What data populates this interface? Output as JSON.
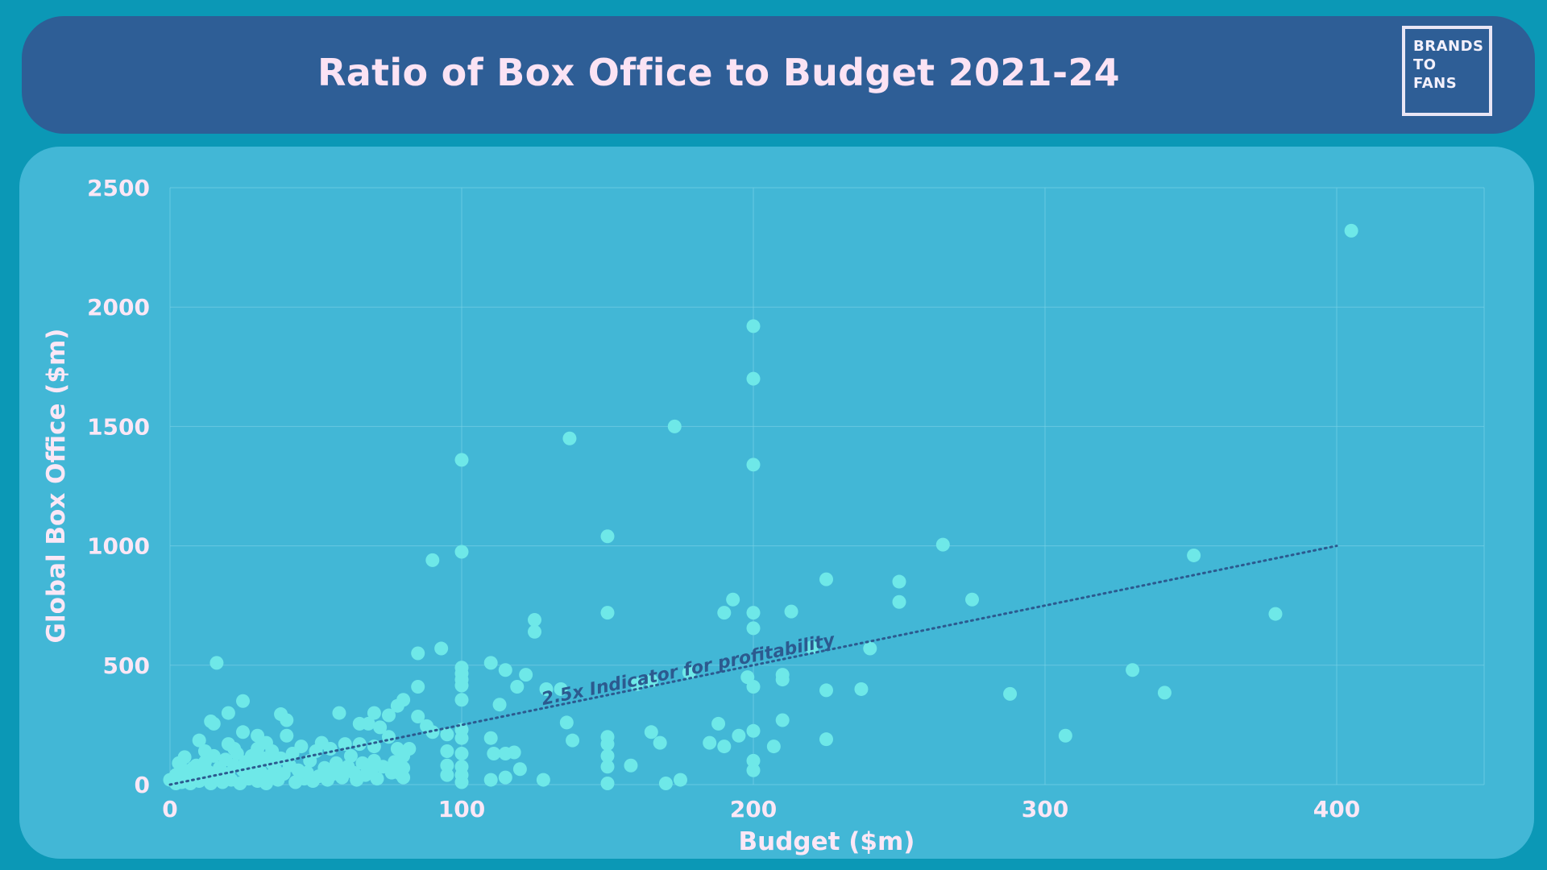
{
  "header": {
    "title": "Ratio of Box Office to Budget 2021-24",
    "logo_lines": [
      "BRANDS",
      "TO",
      "FANS"
    ]
  },
  "colors": {
    "background": "#0b98b6",
    "header": "#2e5e96",
    "panel": "#42b7d6",
    "points": "#6ee8e8",
    "text": "#fbe7f6",
    "trendline": "#2c5a8f"
  },
  "chart_data": {
    "type": "scatter",
    "title": "Ratio of Box Office to Budget 2021-24",
    "xlabel": "Budget ($m)",
    "ylabel": "Global Box Office ($m)",
    "xlim": [
      0,
      450
    ],
    "ylim": [
      0,
      2500
    ],
    "x_ticks": [
      "0",
      "100",
      "200",
      "300",
      "400"
    ],
    "y_ticks": [
      "0",
      "500",
      "1000",
      "1500",
      "2000",
      "2500"
    ],
    "grid": true,
    "legend": "none",
    "trendline": {
      "label": "2.5x Indicator for profitability",
      "from": [
        0,
        0
      ],
      "to": [
        400,
        1000
      ],
      "style": "dotted"
    },
    "points": [
      [
        405,
        2320
      ],
      [
        200,
        1920
      ],
      [
        200,
        1700
      ],
      [
        200,
        1340
      ],
      [
        100,
        1360
      ],
      [
        137,
        1450
      ],
      [
        173,
        1500
      ],
      [
        150,
        1040
      ],
      [
        100,
        975
      ],
      [
        90,
        940
      ],
      [
        265,
        1005
      ],
      [
        351,
        960
      ],
      [
        225,
        860
      ],
      [
        250,
        850
      ],
      [
        250,
        765
      ],
      [
        275,
        775
      ],
      [
        213,
        725
      ],
      [
        193,
        775
      ],
      [
        190,
        720
      ],
      [
        200,
        720
      ],
      [
        200,
        655
      ],
      [
        150,
        720
      ],
      [
        379,
        715
      ],
      [
        125,
        690
      ],
      [
        125,
        640
      ],
      [
        93,
        570
      ],
      [
        85,
        550
      ],
      [
        16,
        510
      ],
      [
        110,
        510
      ],
      [
        100,
        490
      ],
      [
        100,
        465
      ],
      [
        100,
        440
      ],
      [
        100,
        415
      ],
      [
        100,
        355
      ],
      [
        115,
        480
      ],
      [
        122,
        460
      ],
      [
        220,
        575
      ],
      [
        240,
        570
      ],
      [
        178,
        470
      ],
      [
        198,
        450
      ],
      [
        210,
        440
      ],
      [
        210,
        460
      ],
      [
        200,
        410
      ],
      [
        225,
        395
      ],
      [
        237,
        400
      ],
      [
        330,
        480
      ],
      [
        341,
        385
      ],
      [
        288,
        380
      ],
      [
        307,
        205
      ],
      [
        165,
        435
      ],
      [
        160,
        420
      ],
      [
        129,
        400
      ],
      [
        134,
        400
      ],
      [
        119,
        410
      ],
      [
        85,
        410
      ],
      [
        113,
        335
      ],
      [
        80,
        355
      ],
      [
        78,
        330
      ],
      [
        70,
        300
      ],
      [
        58,
        300
      ],
      [
        38,
        295
      ],
      [
        25,
        350
      ],
      [
        20,
        300
      ],
      [
        40,
        270
      ],
      [
        14,
        265
      ],
      [
        15,
        255
      ],
      [
        25,
        220
      ],
      [
        40,
        205
      ],
      [
        30,
        205
      ],
      [
        10,
        185
      ],
      [
        5,
        115
      ],
      [
        3,
        90
      ],
      [
        8,
        70
      ],
      [
        12,
        140
      ],
      [
        20,
        170
      ],
      [
        22,
        150
      ],
      [
        28,
        120
      ],
      [
        30,
        150
      ],
      [
        33,
        175
      ],
      [
        35,
        90
      ],
      [
        38,
        110
      ],
      [
        42,
        130
      ],
      [
        45,
        160
      ],
      [
        48,
        100
      ],
      [
        50,
        140
      ],
      [
        52,
        175
      ],
      [
        55,
        150
      ],
      [
        57,
        90
      ],
      [
        60,
        170
      ],
      [
        62,
        120
      ],
      [
        65,
        255
      ],
      [
        65,
        170
      ],
      [
        68,
        255
      ],
      [
        70,
        160
      ],
      [
        70,
        100
      ],
      [
        72,
        240
      ],
      [
        75,
        290
      ],
      [
        75,
        200
      ],
      [
        78,
        150
      ],
      [
        80,
        120
      ],
      [
        80,
        70
      ],
      [
        80,
        30
      ],
      [
        82,
        150
      ],
      [
        85,
        285
      ],
      [
        88,
        245
      ],
      [
        90,
        220
      ],
      [
        95,
        210
      ],
      [
        95,
        140
      ],
      [
        95,
        80
      ],
      [
        95,
        40
      ],
      [
        100,
        230
      ],
      [
        100,
        195
      ],
      [
        100,
        130
      ],
      [
        100,
        75
      ],
      [
        100,
        40
      ],
      [
        100,
        10
      ],
      [
        110,
        195
      ],
      [
        111,
        130
      ],
      [
        115,
        130
      ],
      [
        118,
        135
      ],
      [
        120,
        65
      ],
      [
        110,
        20
      ],
      [
        115,
        30
      ],
      [
        128,
        20
      ],
      [
        136,
        260
      ],
      [
        138,
        185
      ],
      [
        150,
        200
      ],
      [
        150,
        170
      ],
      [
        150,
        120
      ],
      [
        150,
        75
      ],
      [
        150,
        5
      ],
      [
        158,
        80
      ],
      [
        165,
        220
      ],
      [
        168,
        175
      ],
      [
        170,
        5
      ],
      [
        175,
        20
      ],
      [
        185,
        175
      ],
      [
        188,
        255
      ],
      [
        190,
        160
      ],
      [
        195,
        205
      ],
      [
        200,
        225
      ],
      [
        200,
        100
      ],
      [
        200,
        60
      ],
      [
        207,
        160
      ],
      [
        210,
        270
      ],
      [
        225,
        190
      ],
      [
        0,
        20
      ],
      [
        2,
        5
      ],
      [
        2,
        40
      ],
      [
        4,
        10
      ],
      [
        5,
        60
      ],
      [
        6,
        25
      ],
      [
        7,
        5
      ],
      [
        8,
        45
      ],
      [
        9,
        80
      ],
      [
        10,
        15
      ],
      [
        11,
        35
      ],
      [
        12,
        95
      ],
      [
        13,
        55
      ],
      [
        14,
        5
      ],
      [
        15,
        120
      ],
      [
        16,
        30
      ],
      [
        17,
        70
      ],
      [
        18,
        10
      ],
      [
        19,
        105
      ],
      [
        20,
        45
      ],
      [
        21,
        20
      ],
      [
        22,
        80
      ],
      [
        23,
        130
      ],
      [
        24,
        5
      ],
      [
        25,
        60
      ],
      [
        26,
        95
      ],
      [
        27,
        25
      ],
      [
        28,
        40
      ],
      [
        29,
        75
      ],
      [
        30,
        15
      ],
      [
        31,
        55
      ],
      [
        32,
        110
      ],
      [
        33,
        5
      ],
      [
        34,
        35
      ],
      [
        35,
        140
      ],
      [
        36,
        65
      ],
      [
        37,
        20
      ],
      [
        39,
        45
      ],
      [
        41,
        80
      ],
      [
        43,
        10
      ],
      [
        44,
        60
      ],
      [
        46,
        25
      ],
      [
        47,
        50
      ],
      [
        49,
        15
      ],
      [
        51,
        35
      ],
      [
        53,
        70
      ],
      [
        54,
        20
      ],
      [
        56,
        45
      ],
      [
        58,
        60
      ],
      [
        59,
        30
      ],
      [
        61,
        75
      ],
      [
        63,
        50
      ],
      [
        64,
        20
      ],
      [
        66,
        90
      ],
      [
        67,
        40
      ],
      [
        69,
        60
      ],
      [
        71,
        25
      ],
      [
        73,
        75
      ],
      [
        76,
        50
      ],
      [
        77,
        95
      ],
      [
        79,
        45
      ]
    ]
  }
}
